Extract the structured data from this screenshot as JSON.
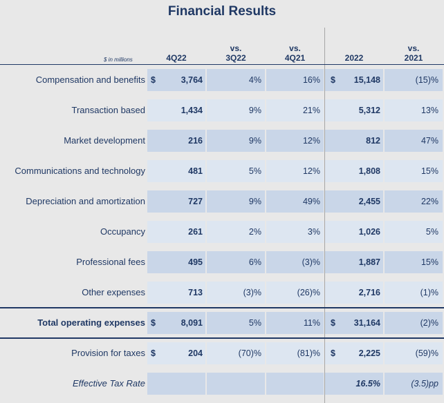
{
  "title": "Financial Results",
  "unit_label": "$ in millions",
  "columns": [
    {
      "line1": "",
      "line2": "4Q22"
    },
    {
      "line1": "vs.",
      "line2": "3Q22"
    },
    {
      "line1": "vs.",
      "line2": "4Q21"
    },
    {
      "line1": "",
      "line2": "2022"
    },
    {
      "line1": "vs.",
      "line2": "2021"
    }
  ],
  "dollar_sign": "$",
  "rows": [
    {
      "label": "Compensation and benefits",
      "q4": "3,764",
      "vs3q": "4%",
      "vs4q": "16%",
      "fy": "15,148",
      "vsfy": "(15)%"
    },
    {
      "label": "Transaction based",
      "q4": "1,434",
      "vs3q": "9%",
      "vs4q": "21%",
      "fy": "5,312",
      "vsfy": "13%"
    },
    {
      "label": "Market development",
      "q4": "216",
      "vs3q": "9%",
      "vs4q": "12%",
      "fy": "812",
      "vsfy": "47%"
    },
    {
      "label": "Communications and technology",
      "q4": "481",
      "vs3q": "5%",
      "vs4q": "12%",
      "fy": "1,808",
      "vsfy": "15%"
    },
    {
      "label": "Depreciation and amortization",
      "q4": "727",
      "vs3q": "9%",
      "vs4q": "49%",
      "fy": "2,455",
      "vsfy": "22%"
    },
    {
      "label": "Occupancy",
      "q4": "261",
      "vs3q": "2%",
      "vs4q": "3%",
      "fy": "1,026",
      "vsfy": "5%"
    },
    {
      "label": "Professional fees",
      "q4": "495",
      "vs3q": "6%",
      "vs4q": "(3)%",
      "fy": "1,887",
      "vsfy": "15%"
    },
    {
      "label": "Other expenses",
      "q4": "713",
      "vs3q": "(3)%",
      "vs4q": "(26)%",
      "fy": "2,716",
      "vsfy": "(1)%"
    }
  ],
  "total": {
    "label": "Total operating expenses",
    "q4": "8,091",
    "vs3q": "5%",
    "vs4q": "11%",
    "fy": "31,164",
    "vsfy": "(2)%"
  },
  "taxes": {
    "label": "Provision for taxes",
    "q4": "204",
    "vs3q": "(70)%",
    "vs4q": "(81)%",
    "fy": "2,225",
    "vsfy": "(59)%"
  },
  "etr": {
    "label": "Effective Tax Rate",
    "fy": "16.5%",
    "vsfy": "(3.5)pp"
  },
  "colors": {
    "text": "#1f3864",
    "shade_dark": "#c9d6e8",
    "shade_light": "#dde6f1",
    "background": "#e8e8e8"
  }
}
